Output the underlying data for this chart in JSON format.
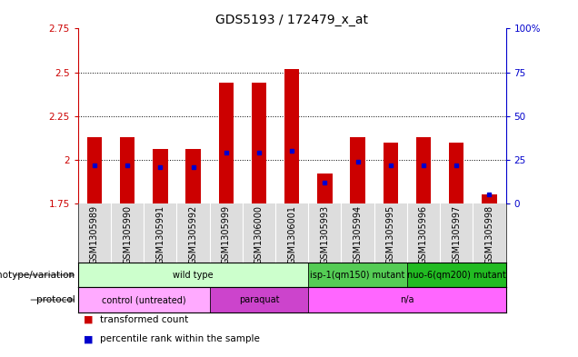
{
  "title": "GDS5193 / 172479_x_at",
  "samples": [
    "GSM1305989",
    "GSM1305990",
    "GSM1305991",
    "GSM1305992",
    "GSM1305999",
    "GSM1306000",
    "GSM1306001",
    "GSM1305993",
    "GSM1305994",
    "GSM1305995",
    "GSM1305996",
    "GSM1305997",
    "GSM1305998"
  ],
  "transformed_count": [
    2.13,
    2.13,
    2.06,
    2.06,
    2.44,
    2.44,
    2.52,
    1.92,
    2.13,
    2.1,
    2.13,
    2.1,
    1.8
  ],
  "percentile_rank": [
    22,
    22,
    21,
    21,
    29,
    29,
    30,
    12,
    24,
    22,
    22,
    22,
    5
  ],
  "bar_bottom": 1.75,
  "ylim_left": [
    1.75,
    2.75
  ],
  "ylim_right": [
    0,
    100
  ],
  "yticks_left": [
    1.75,
    2.0,
    2.25,
    2.5,
    2.75
  ],
  "yticks_right": [
    0,
    25,
    50,
    75,
    100
  ],
  "ytick_labels_left": [
    "1.75",
    "2",
    "2.25",
    "2.5",
    "2.75"
  ],
  "ytick_labels_right": [
    "0",
    "25",
    "50",
    "75",
    "100%"
  ],
  "grid_yticks": [
    2.0,
    2.25,
    2.5
  ],
  "bar_color": "#cc0000",
  "blue_color": "#0000cc",
  "genotype_groups": [
    {
      "label": "wild type",
      "start": 0,
      "end": 6,
      "color": "#ccffcc"
    },
    {
      "label": "isp-1(qm150) mutant",
      "start": 7,
      "end": 9,
      "color": "#55cc55"
    },
    {
      "label": "nuo-6(qm200) mutant",
      "start": 10,
      "end": 12,
      "color": "#22bb22"
    }
  ],
  "protocol_groups": [
    {
      "label": "control (untreated)",
      "start": 0,
      "end": 3,
      "color": "#ffaaff"
    },
    {
      "label": "paraquat",
      "start": 4,
      "end": 6,
      "color": "#cc44cc"
    },
    {
      "label": "n/a",
      "start": 7,
      "end": 12,
      "color": "#ff66ff"
    }
  ],
  "legend_items": [
    {
      "color": "#cc0000",
      "label": "transformed count"
    },
    {
      "color": "#0000cc",
      "label": "percentile rank within the sample"
    }
  ],
  "left_axis_color": "#cc0000",
  "right_axis_color": "#0000cc",
  "title_fontsize": 10,
  "tick_fontsize": 7.5,
  "sample_fontsize": 7,
  "legend_fontsize": 8
}
